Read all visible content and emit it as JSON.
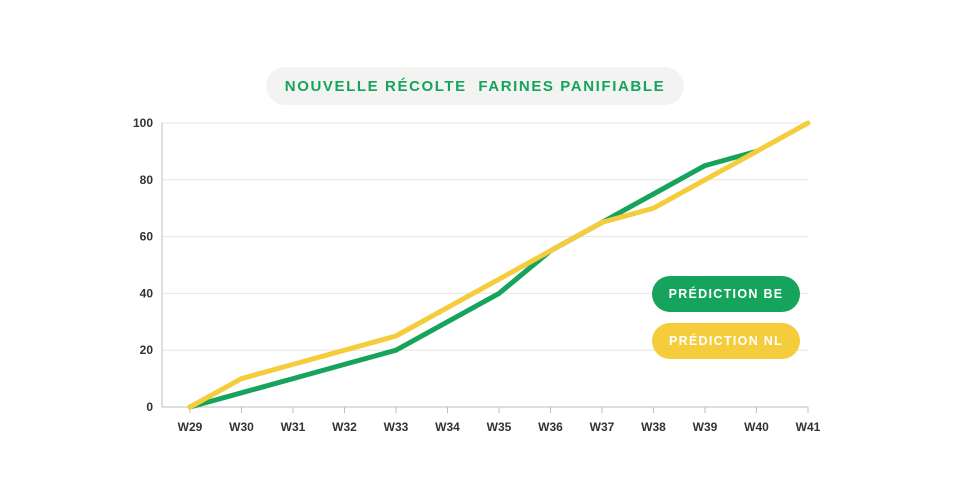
{
  "chart_data": {
    "type": "line",
    "title": "NOUVELLE RÉCOLTE  FARINES PANIFIABLE",
    "categories": [
      "W29",
      "W30",
      "W31",
      "W32",
      "W33",
      "W34",
      "W35",
      "W36",
      "W37",
      "W38",
      "W39",
      "W40",
      "W41"
    ],
    "ylim": [
      0,
      100
    ],
    "yticks": [
      0,
      20,
      40,
      60,
      80,
      100
    ],
    "grid": true,
    "legend_position": "right",
    "series": [
      {
        "name": "PRÉDICTION BE",
        "color": "#16a35c",
        "values": [
          0,
          5,
          10,
          15,
          20,
          30,
          40,
          55,
          65,
          75,
          85,
          90,
          null
        ]
      },
      {
        "name": "PRÉDICTION NL",
        "color": "#f4cc3c",
        "values": [
          0,
          10,
          15,
          20,
          25,
          35,
          45,
          55,
          65,
          70,
          80,
          90,
          100
        ]
      }
    ]
  }
}
